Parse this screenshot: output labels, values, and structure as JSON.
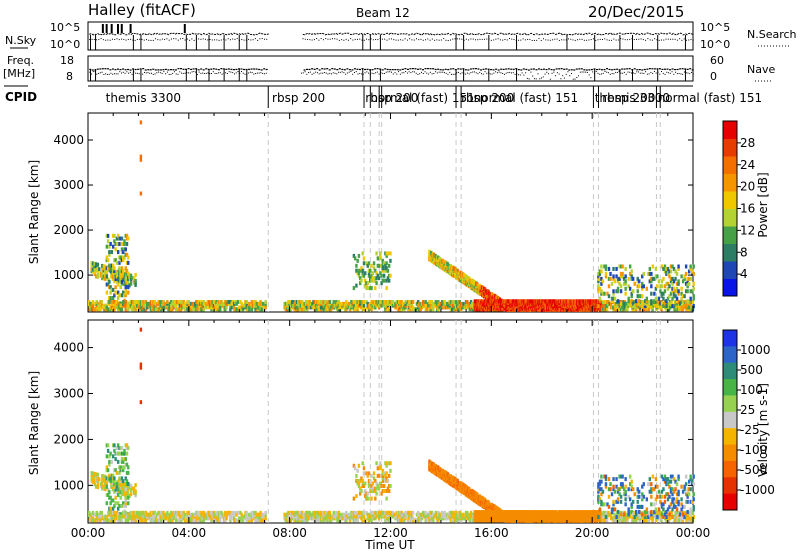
{
  "header": {
    "radar": "Halley (fitACF)",
    "beam": "Beam 12",
    "date": "20/Dec/2015"
  },
  "strip_labels": {
    "nsky": "N.Sky",
    "nsearch": "N.Search",
    "freq": "Freq.",
    "freq_unit": "[MHz]",
    "nave": "Nave",
    "cpid": "CPID"
  },
  "strip_ticks": {
    "noise_left": [
      "10^5",
      "10^0"
    ],
    "noise_right": [
      "10^5",
      "10^0"
    ],
    "freq_left": [
      "18",
      "8"
    ],
    "nave_right": [
      "60",
      "0"
    ]
  },
  "cpid_labels": [
    {
      "text": "themis 3300",
      "t": 0.7
    },
    {
      "text": "rbsp 200",
      "t": 7.3
    },
    {
      "text": "rbsp 200",
      "t": 11.0
    },
    {
      "text": "normal (fast) 151",
      "t": 11.2
    },
    {
      "text": "rbsp 200",
      "t": 14.8
    },
    {
      "text": "normal (fast) 151",
      "t": 15.3
    },
    {
      "text": "themis 3300",
      "t": 20.1
    },
    {
      "text": "rbsp 200",
      "t": 20.4
    },
    {
      "text": "normal (fast) 151",
      "t": 22.6
    }
  ],
  "mode_changes": [
    7.15,
    10.95,
    11.2,
    11.55,
    11.65,
    14.6,
    14.8,
    20.05,
    20.25,
    22.55,
    22.7
  ],
  "colors": {
    "power": [
      "#0a14e6",
      "#1e46b4",
      "#2d7d64",
      "#46a046",
      "#b4d232",
      "#f0c800",
      "#f59600",
      "#f56e00",
      "#e63c00",
      "#e60000"
    ],
    "velocity": [
      "#1e32e6",
      "#2d64c8",
      "#2d8c78",
      "#46b446",
      "#96d250",
      "#c8c8c8",
      "#f5b400",
      "#f58c00",
      "#f56400",
      "#e63200",
      "#e60000"
    ],
    "ground_scatter": "#9b9b9b"
  },
  "chart_data": [
    {
      "type": "heatmap",
      "ylabel": "Slant Range [km]",
      "ylim": [
        180,
        4600
      ],
      "xlim_hours": [
        0,
        24
      ],
      "y_ticks": [
        "1000",
        "2000",
        "3000",
        "4000"
      ],
      "colorbar_label": "Power [dB]",
      "colorbar_ticks": [
        "4",
        "8",
        "12",
        "16",
        "20",
        "24",
        "28"
      ],
      "colorbar_range": [
        0,
        30
      ]
    },
    {
      "type": "heatmap",
      "ylabel": "Slant Range [km]",
      "xlabel": "Time UT",
      "ylim": [
        180,
        4600
      ],
      "xlim_hours": [
        0,
        24
      ],
      "y_ticks": [
        "1000",
        "2000",
        "3000",
        "4000"
      ],
      "x_ticks": [
        "00:00",
        "04:00",
        "08:00",
        "12:00",
        "16:00",
        "20:00",
        "00:00"
      ],
      "colorbar_label": "Velocity [m s-1]",
      "colorbar_ticks": [
        "1000",
        "500",
        "100",
        "25",
        "-25",
        "-100",
        "-500",
        "-1000"
      ]
    }
  ]
}
